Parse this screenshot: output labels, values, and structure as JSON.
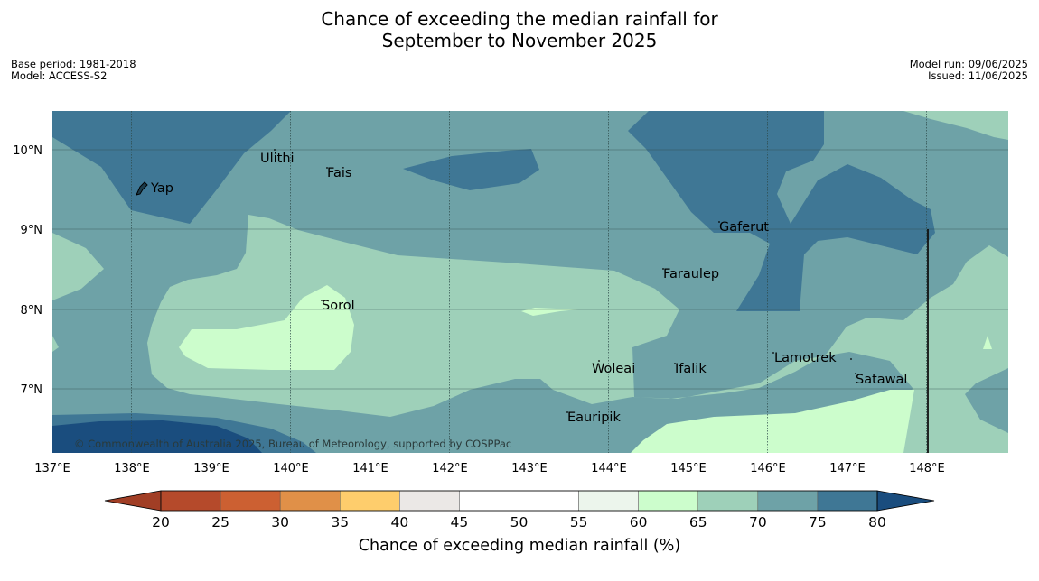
{
  "title": {
    "line1": "Chance of exceeding the median rainfall for",
    "line2": "September to November 2025"
  },
  "meta": {
    "base_period": "Base period: 1981-2018",
    "model": "Model: ACCESS-S2",
    "model_run": "Model run: 09/06/2025",
    "issued": "Issued: 11/06/2025"
  },
  "map": {
    "copyright": "© Commonwealth of Australia 2025, Bureau of Meteorology, supported by COSPPac",
    "lon_ticks": [
      "137°E",
      "138°E",
      "139°E",
      "140°E",
      "141°E",
      "142°E",
      "143°E",
      "144°E",
      "145°E",
      "146°E",
      "147°E",
      "148°E"
    ],
    "lat_ticks": [
      "10°N",
      "9°N",
      "8°N",
      "7°N"
    ],
    "places": [
      "Yap",
      "Ulithi",
      "Fais",
      "Gaferut",
      "Faraulep",
      "Sorol",
      "Woleai",
      "Ifalik",
      "Lamotrek",
      "Satawal",
      "Eauripik"
    ]
  },
  "colorbar": {
    "label": "Chance of exceeding median rainfall (%)",
    "ticks": [
      "20",
      "25",
      "30",
      "35",
      "40",
      "45",
      "50",
      "55",
      "60",
      "65",
      "70",
      "75",
      "80"
    ],
    "colors": [
      "#a13e25",
      "#b54a2b",
      "#cc6032",
      "#e09048",
      "#fecd6c",
      "#ebe8e6",
      "#ffffff",
      "#ffffff",
      "#ecf5ec",
      "#ccfdcc",
      "#9ed0b9",
      "#6ea2a7",
      "#3f7795",
      "#1a4d7e"
    ]
  }
}
